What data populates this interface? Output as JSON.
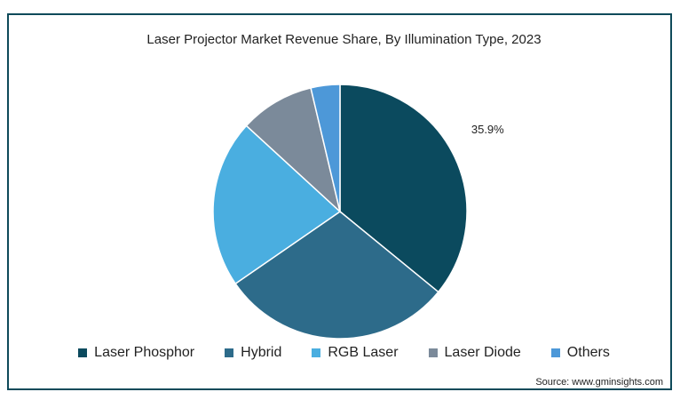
{
  "chart_data": {
    "type": "pie",
    "title": "Laser Projector Market Revenue Share, By Illumination Type, 2023",
    "categories": [
      "Laser Phosphor",
      "Hybrid",
      "RGB Laser",
      "Laser Diode",
      "Others"
    ],
    "values": [
      35.9,
      29.5,
      21.4,
      9.5,
      3.7
    ],
    "colors": [
      "#0b4a5e",
      "#2d6b8a",
      "#4aaee0",
      "#7b8a9a",
      "#4d98d8"
    ],
    "data_labels": [
      "35.9%",
      "",
      "",
      "",
      ""
    ],
    "legend_position": "bottom"
  },
  "source": "Source: www.gminsights.com"
}
